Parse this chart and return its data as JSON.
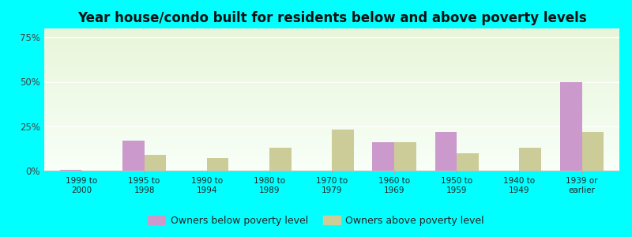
{
  "title": "Year house/condo built for residents below and above poverty levels",
  "categories": [
    "1999 to\n2000",
    "1995 to\n1998",
    "1990 to\n1994",
    "1980 to\n1989",
    "1970 to\n1979",
    "1960 to\n1969",
    "1950 to\n1959",
    "1940 to\n1949",
    "1939 or\nearlier"
  ],
  "below_poverty": [
    0.5,
    17,
    0,
    0,
    0,
    16,
    22,
    0,
    50
  ],
  "above_poverty": [
    0,
    9,
    7,
    13,
    23,
    16,
    10,
    13,
    22
  ],
  "below_color": "#cc99cc",
  "above_color": "#cccc99",
  "yticks": [
    0,
    25,
    50,
    75
  ],
  "ylim": [
    0,
    80
  ],
  "outer_bg": "#00ffff",
  "bar_width": 0.35,
  "title_fontsize": 12,
  "legend_below_label": "Owners below poverty level",
  "legend_above_label": "Owners above poverty level"
}
